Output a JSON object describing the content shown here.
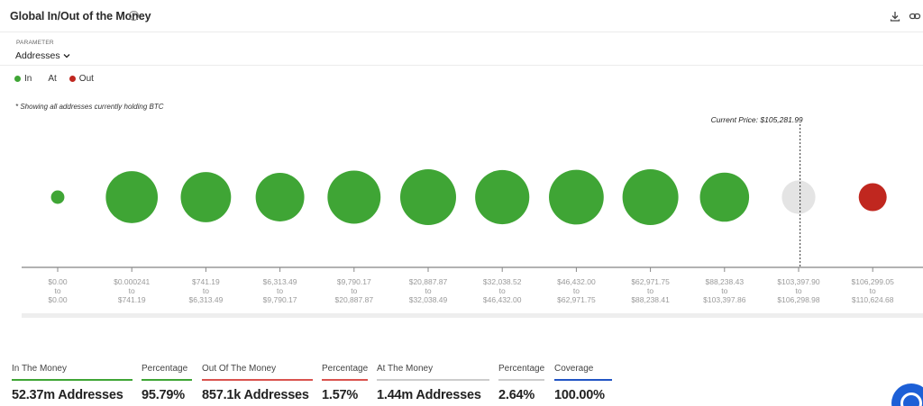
{
  "header": {
    "title": "Global In/Out of the Money",
    "help_icon": "question-circle-icon",
    "download_icon": "download-icon",
    "link_icon": "link-icon"
  },
  "parameter": {
    "label": "PARAMETER",
    "value": "Addresses"
  },
  "legend": [
    {
      "label": "In",
      "color": "#3fa535"
    },
    {
      "label": "At",
      "color": null
    },
    {
      "label": "Out",
      "color": "#c0271f"
    }
  ],
  "note": "* Showing all addresses currently holding BTC",
  "colors": {
    "in": "#3fa535",
    "at": "#e4e4e4",
    "out": "#c0271f"
  },
  "chart_data": {
    "type": "scatter",
    "annotation": "Current Price: $105,281.99",
    "grid": false,
    "legend_position": "top-left",
    "bubbles": [
      {
        "from": "$0.00",
        "to": "$0.00",
        "status": "in",
        "relative_size": 0.24
      },
      {
        "from": "$0.000241",
        "to": "$741.19",
        "status": "in",
        "relative_size": 0.93
      },
      {
        "from": "$741.19",
        "to": "$6,313.49",
        "status": "in",
        "relative_size": 0.9
      },
      {
        "from": "$6,313.49",
        "to": "$9,790.17",
        "status": "in",
        "relative_size": 0.87
      },
      {
        "from": "$9,790.17",
        "to": "$20,887.87",
        "status": "in",
        "relative_size": 0.95
      },
      {
        "from": "$20,887.87",
        "to": "$32,038.49",
        "status": "in",
        "relative_size": 1.0
      },
      {
        "from": "$32,038.52",
        "to": "$46,432.00",
        "status": "in",
        "relative_size": 0.97
      },
      {
        "from": "$46,432.00",
        "to": "$62,971.75",
        "status": "in",
        "relative_size": 0.98
      },
      {
        "from": "$62,971.75",
        "to": "$88,238.41",
        "status": "in",
        "relative_size": 1.0
      },
      {
        "from": "$88,238.43",
        "to": "$103,397.86",
        "status": "in",
        "relative_size": 0.88
      },
      {
        "from": "$103,397.90",
        "to": "$106,298.98",
        "status": "at",
        "relative_size": 0.6
      },
      {
        "from": "$106,299.05",
        "to": "$110,624.68",
        "status": "out",
        "relative_size": 0.5
      }
    ],
    "tick_connector": "to",
    "current_price_between_index": 10.3
  },
  "stats": [
    {
      "label": "In The Money",
      "value": "52.37m Addresses",
      "color": "#3fa535"
    },
    {
      "label": "Percentage",
      "value": "95.79%",
      "color": "#3fa535"
    },
    {
      "label": "Out Of The Money",
      "value": "857.1k Addresses",
      "color": "#d9534f"
    },
    {
      "label": "Percentage",
      "value": "1.57%",
      "color": "#d9534f"
    },
    {
      "label": "At The Money",
      "value": "1.44m Addresses",
      "color": "#cccccc"
    },
    {
      "label": "Percentage",
      "value": "2.64%",
      "color": "#cccccc"
    },
    {
      "label": "Coverage",
      "value": "100.00%",
      "color": "#2255c4"
    }
  ]
}
